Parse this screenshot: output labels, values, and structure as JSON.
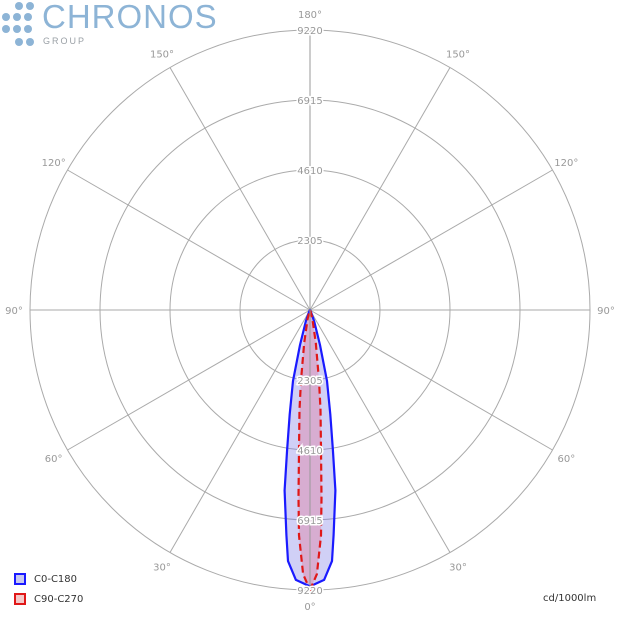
{
  "logo": {
    "name": "CHRONOS",
    "sub": "GROUP"
  },
  "chart_data": {
    "type": "polar",
    "units": "cd/1000lm",
    "rlim": [
      0,
      9220
    ],
    "radial_ticks": [
      "2305",
      "4610",
      "6915",
      "9220"
    ],
    "angle_ticks": [
      "0°",
      "30°",
      "60°",
      "90°",
      "120°",
      "150°",
      "180°"
    ],
    "grid": true,
    "legend": "bottom-left",
    "series": [
      {
        "name": "C0-C180",
        "color": "#1a1aff",
        "fill": "rgba(120,120,230,0.35)",
        "dash": false,
        "angles": [
          0,
          3,
          5,
          6,
          8,
          9.3,
          11,
          13.5,
          16,
          20,
          25,
          30
        ],
        "values": [
          9100,
          8900,
          8300,
          7450,
          6000,
          4670,
          3500,
          2400,
          1200,
          400,
          100,
          0
        ]
      },
      {
        "name": "C90-C270",
        "color": "#e01818",
        "fill": "rgba(230,110,140,0.35)",
        "dash": true,
        "angles": [
          0,
          1.5,
          2.8,
          3.5,
          4.5,
          6,
          7.3,
          10,
          15,
          20,
          25
        ],
        "values": [
          9220,
          8700,
          7430,
          6200,
          4620,
          3300,
          2330,
          1100,
          300,
          50,
          0
        ]
      }
    ]
  }
}
